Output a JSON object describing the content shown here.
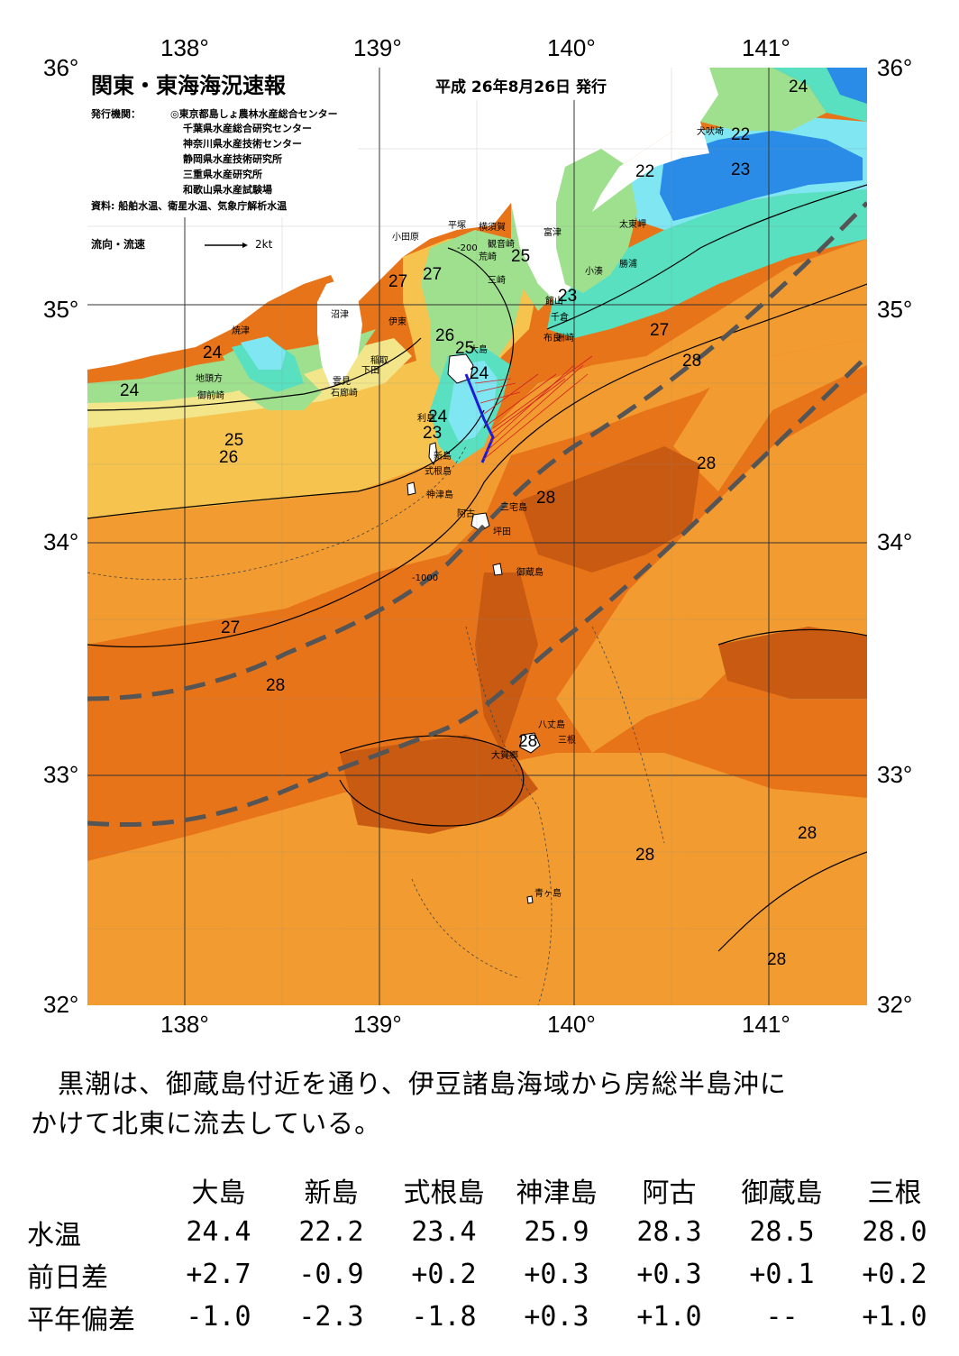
{
  "axes": {
    "lon_top": [
      "138°",
      "139°",
      "140°",
      "141°"
    ],
    "lon_bottom": [
      "138°",
      "139°",
      "140°",
      "141°"
    ],
    "lat_left": [
      "36°",
      "35°",
      "34°",
      "33°",
      "32°"
    ],
    "lat_right": [
      "36°",
      "35°",
      "34°",
      "33°",
      "32°"
    ]
  },
  "header": {
    "title": "関東・東海海況速報",
    "date": "平成 26年8月26日 発行",
    "issuer_label": "発行機関：",
    "issuers": [
      "◎東京都島しょ農林水産総合センター",
      "千葉県水産総合研究センター",
      "神奈川県水産技術センター",
      "静岡県水産技術研究所",
      "三重県水産研究所",
      "和歌山県水産試験場"
    ],
    "source": "資料: 船舶水温、衛星水温、気象庁解析水温",
    "legend_label": "流向・流速",
    "legend_scale": "2kt"
  },
  "isotherm_labels": [
    "24",
    "22",
    "22",
    "23",
    "25",
    "27",
    "27",
    "23",
    "27",
    "28",
    "24",
    "26",
    "25",
    "24",
    "24",
    "24",
    "23",
    "25",
    "26",
    "28",
    "28",
    "27",
    "28",
    "28",
    "28",
    "28",
    "28"
  ],
  "contour_depths": [
    "-200",
    "-1000"
  ],
  "place_names": [
    "犬吠埼",
    "太東岬",
    "勝浦",
    "小湊",
    "富津",
    "横須賀",
    "観音崎",
    "平塚",
    "小田原",
    "荒崎",
    "三崎",
    "館山",
    "千倉",
    "布良",
    "洲崎",
    "沼津",
    "伊東",
    "焼津",
    "稲取",
    "下田",
    "雲見",
    "石廊崎",
    "地頭方",
    "御前崎",
    "大島",
    "利島",
    "新島",
    "式根島",
    "神津島",
    "三宅島",
    "阿古",
    "坪田",
    "御蔵島",
    "八丈島",
    "三根",
    "大賀郷",
    "青ヶ島"
  ],
  "summary": {
    "line1": "黒潮は、御蔵島付近を通り、伊豆諸島海域から房総半島沖に",
    "line2": "かけて北東に流去している。"
  },
  "table": {
    "columns": [
      "大島",
      "新島",
      "式根島",
      "神津島",
      "阿古",
      "御蔵島",
      "三根"
    ],
    "rows": [
      {
        "label": "水温",
        "values": [
          "24.4",
          "22.2",
          "23.4",
          "25.9",
          "28.3",
          "28.5",
          "28.0"
        ]
      },
      {
        "label": "前日差",
        "values": [
          "+2.7",
          "-0.9",
          "+0.2",
          "+0.3",
          "+0.3",
          "+0.1",
          "+0.2"
        ]
      },
      {
        "label": "平年偏差",
        "values": [
          "-1.0",
          "-2.3",
          "-1.8",
          "+0.3",
          "+1.0",
          "--",
          "+1.0"
        ]
      }
    ]
  },
  "colors": {
    "warm_28plus": "#c85a12",
    "warm_28": "#e8741a",
    "temp_27": "#f29b30",
    "temp_26": "#f6c44e",
    "temp_25": "#f2e58a",
    "temp_24": "#9fe08e",
    "temp_23": "#58e0c0",
    "temp_22": "#7fe6f2",
    "cold_21": "#2a8ce6",
    "land": "#ffffff",
    "kuroshio_axis": "#555555",
    "track": "#1c1cd8",
    "current_vectors": "#d42020"
  }
}
